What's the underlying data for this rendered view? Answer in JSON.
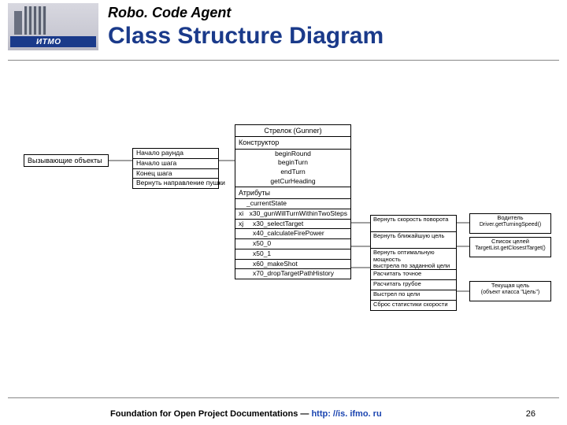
{
  "header": {
    "logo_text": "ИТМО",
    "subtitle": "Robo. Code Agent",
    "title": "Class Structure Diagram"
  },
  "footer": {
    "text": "Foundation for Open Project Documentations — ",
    "link": "http: //is. ifmo. ru",
    "page": "26"
  },
  "diagram": {
    "calling_objects": "Вызывающие объекты",
    "class_name": "Стрелок (Gunner)",
    "constructor_header": "Конструктор",
    "methods_left": [
      "Начало раунда",
      "Начало шага",
      "Конец шага",
      "Вернуть направление пушки"
    ],
    "methods_right": [
      "beginRound",
      "beginTurn",
      "endTurn",
      "getCurHeading"
    ],
    "attributes_header": "Атрибуты",
    "attr1": "_currentState",
    "attr_rows": [
      {
        "l": "xi",
        "c": "x30_gunWillTurnWithinTwoSteps"
      },
      {
        "l": "xj",
        "c": "x30_selectTarget"
      },
      {
        "l": "",
        "c": "x40_calculateFirePower"
      },
      {
        "l": "",
        "c": "x50_0"
      },
      {
        "l": "",
        "c": "x50_1"
      },
      {
        "l": "",
        "c": "x60_makeShot"
      },
      {
        "l": "",
        "c": "x70_dropTargetPathHistory"
      }
    ],
    "right_rows": [
      {
        "a": "Вернуть скорость поворота",
        "b": "Водитель",
        "c": "Driver.getTurningSpeed()"
      },
      {
        "a": "Вернуть ближайшую цель",
        "b": "Список целей",
        "c": "TargetList.getClosestTarget()"
      },
      {
        "a": "Вернуть оптимальную мощность\nвыстрела по заданной цели",
        "b": "",
        "c": ""
      },
      {
        "a": "Расчитать точное упреждение",
        "b": "Текущая цель",
        "c": "(объект класса \"Цель\")"
      },
      {
        "a": "Расчитать грубое упреждение",
        "b": "",
        "c": ""
      },
      {
        "a": "Выстрел по цели",
        "b": "",
        "c": ""
      },
      {
        "a": "Сброс статистики скорости",
        "b": "",
        "c": ""
      }
    ]
  }
}
